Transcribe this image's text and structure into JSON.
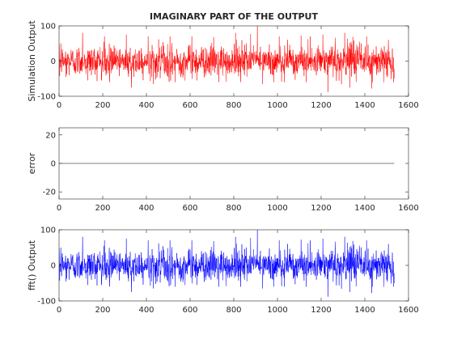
{
  "figure": {
    "title": "IMAGINARY PART OF THE OUTPUT"
  },
  "chart_data": [
    {
      "type": "line",
      "title": "IMAGINARY PART OF THE OUTPUT",
      "xlabel": "",
      "ylabel": "Simulation Output",
      "xlim": [
        0,
        1600
      ],
      "ylim": [
        -100,
        100
      ],
      "xticks": [
        0,
        200,
        400,
        600,
        800,
        1000,
        1200,
        1400,
        1600
      ],
      "yticks": [
        -100,
        0,
        100
      ],
      "grid": false,
      "series": [
        {
          "color": "#ff0000",
          "n_points": 1535,
          "x_start": 1,
          "x_end": 1535,
          "envelope": {
            "x": [
              0,
              100,
              200,
              300,
              400,
              500,
              600,
              700,
              800,
              900,
              1000,
              1100,
              1200,
              1300,
              1400,
              1500,
              1535
            ],
            "max": [
              50,
              80,
              70,
              75,
              70,
              70,
              70,
              68,
              80,
              100,
              70,
              72,
              75,
              80,
              70,
              60,
              50
            ],
            "min": [
              -45,
              -55,
              -60,
              -75,
              -65,
              -60,
              -55,
              -60,
              -60,
              -65,
              -60,
              -60,
              -88,
              -75,
              -78,
              -60,
              -50
            ]
          }
        }
      ]
    },
    {
      "type": "line",
      "title": "",
      "xlabel": "",
      "ylabel": "error",
      "xlim": [
        0,
        1600
      ],
      "ylim": [
        -25,
        25
      ],
      "xticks": [
        0,
        200,
        400,
        600,
        800,
        1000,
        1200,
        1400,
        1600
      ],
      "yticks": [
        -20,
        0,
        20
      ],
      "grid": false,
      "series": [
        {
          "color": "#000000",
          "x": [
            1,
            1535
          ],
          "y": [
            0,
            0
          ]
        }
      ]
    },
    {
      "type": "line",
      "title": "",
      "xlabel": "",
      "ylabel": "fft() Output",
      "xlim": [
        0,
        1600
      ],
      "ylim": [
        -100,
        100
      ],
      "xticks": [
        0,
        200,
        400,
        600,
        800,
        1000,
        1200,
        1400,
        1600
      ],
      "yticks": [
        -100,
        0,
        100
      ],
      "grid": false,
      "series": [
        {
          "color": "#0000ff",
          "n_points": 1535,
          "x_start": 1,
          "x_end": 1535,
          "envelope": {
            "x": [
              0,
              100,
              200,
              300,
              400,
              500,
              600,
              700,
              800,
              900,
              1000,
              1100,
              1200,
              1300,
              1400,
              1500,
              1535
            ],
            "max": [
              50,
              80,
              70,
              75,
              70,
              70,
              70,
              68,
              80,
              100,
              70,
              72,
              75,
              80,
              70,
              60,
              50
            ],
            "min": [
              -45,
              -55,
              -60,
              -75,
              -65,
              -60,
              -55,
              -60,
              -60,
              -65,
              -60,
              -60,
              -88,
              -75,
              -78,
              -60,
              -50
            ]
          }
        }
      ]
    }
  ]
}
